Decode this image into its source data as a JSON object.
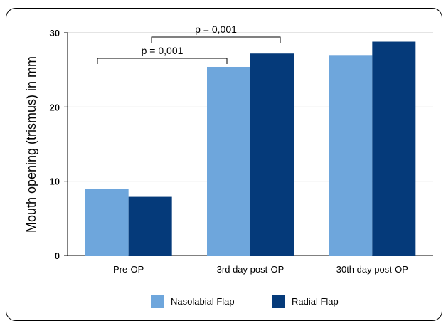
{
  "chart_data": {
    "type": "bar",
    "title": "",
    "xlabel": "",
    "ylabel": "Mouth opening (trismus) in mm",
    "ylim": [
      0,
      30
    ],
    "yticks": [
      0,
      10,
      20,
      30
    ],
    "grid": true,
    "legend_position": "bottom",
    "categories": [
      "Pre-OP",
      "3rd day post-OP",
      "30th day post-OP"
    ],
    "series": [
      {
        "name": "Nasolabial Flap",
        "color": "#6ea6dc",
        "values": [
          9.0,
          25.4,
          27.0
        ]
      },
      {
        "name": "Radial Flap",
        "color": "#053a7a",
        "values": [
          7.9,
          27.2,
          28.8
        ]
      }
    ],
    "annotations": [
      {
        "text": "p = 0,001",
        "from_category": 0,
        "to_category": 1
      },
      {
        "text": "p = 0,001",
        "from_category": 0,
        "to_category": 1
      }
    ]
  }
}
